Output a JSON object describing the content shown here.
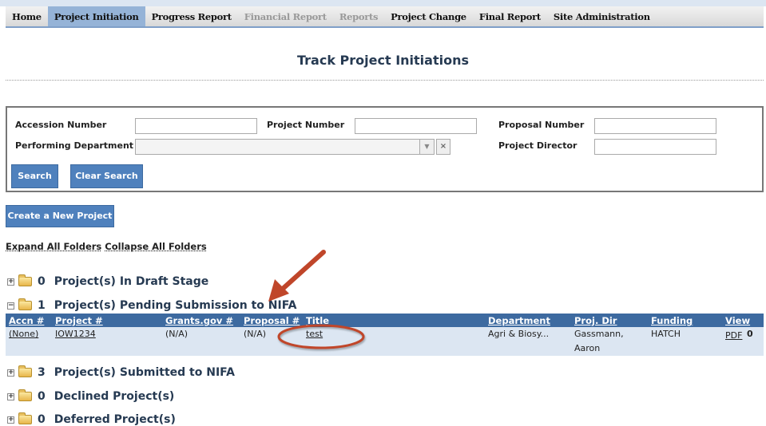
{
  "nav": {
    "items": [
      {
        "label": "Home",
        "state": "normal"
      },
      {
        "label": "Project Initiation",
        "state": "active"
      },
      {
        "label": "Progress Report",
        "state": "normal"
      },
      {
        "label": "Financial Report",
        "state": "disabled"
      },
      {
        "label": "Reports",
        "state": "disabled"
      },
      {
        "label": "Project Change",
        "state": "normal"
      },
      {
        "label": "Final Report",
        "state": "normal"
      },
      {
        "label": "Site Administration",
        "state": "normal"
      }
    ]
  },
  "page": {
    "title": "Track Project Initiations"
  },
  "search": {
    "accession_label": "Accession Number",
    "accession_value": "",
    "project_label": "Project Number",
    "project_value": "",
    "proposal_label": "Proposal Number",
    "proposal_value": "",
    "department_label": "Performing Department",
    "department_value": "",
    "director_label": "Project Director",
    "director_value": "",
    "search_button": "Search",
    "clear_button": "Clear Search"
  },
  "create_button": "Create a New Project",
  "expand_all": "Expand All Folders",
  "collapse_all": "Collapse All Folders",
  "folders": [
    {
      "count": "0",
      "label": "Project(s) In Draft Stage",
      "expanded": false
    },
    {
      "count": "1",
      "label": "Project(s) Pending Submission to NIFA",
      "expanded": true
    },
    {
      "count": "3",
      "label": "Project(s) Submitted to NIFA",
      "expanded": false
    },
    {
      "count": "0",
      "label": "Declined Project(s)",
      "expanded": false
    },
    {
      "count": "0",
      "label": "Deferred Project(s)",
      "expanded": false
    }
  ],
  "table": {
    "headers": [
      "Accn #",
      "Project #",
      "Grants.gov #",
      "Proposal #",
      "Title",
      "Department",
      "Proj. Dir",
      "Funding",
      "View"
    ],
    "rows": [
      {
        "accn": "(None)",
        "project": "IOW1234",
        "grants": "(N/A)",
        "proposal": "(N/A)",
        "title": "test",
        "department": "Agri & Biosy...",
        "dir_last": "Gassmann,",
        "dir_first": "Aaron",
        "funding": "HATCH",
        "view": "PDF"
      }
    ]
  },
  "colors": {
    "header": "#3d6aa0",
    "row": "#dce6f2",
    "active_tab": "#95b3d7",
    "annotation": "#c0462a"
  }
}
